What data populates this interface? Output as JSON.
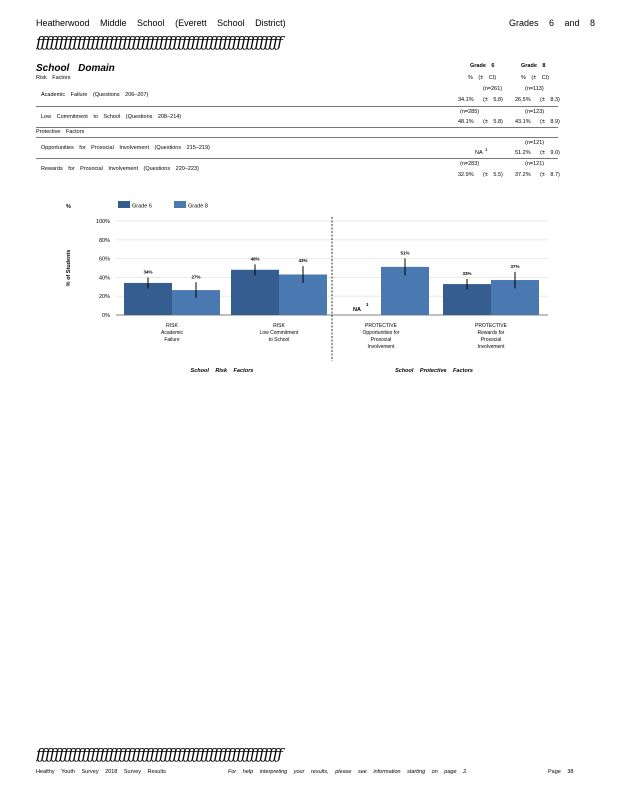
{
  "header": {
    "left": "Heatherwood Middle School (Everett School District)",
    "right": "Grades 6 and 8",
    "rule": "ƒƒƒƒƒƒƒƒƒƒƒƒƒƒƒƒƒƒƒƒƒƒƒƒƒƒƒƒƒƒƒƒƒƒƒƒƒƒƒƒƒƒƒƒƒƒƒƒƒƒƒƒƒƒ"
  },
  "section": {
    "title": "School Domain",
    "col_grade6": "Grade 6",
    "col_grade8": "Grade 8",
    "col_pct6": "% (± CI)",
    "col_pct8": "% (± CI)",
    "risk_heading": "Risk Factors",
    "protective_heading": "Protective Factors"
  },
  "rows": [
    {
      "label": "Academic Failure (Questions 206–207)",
      "n6": "(n=261)",
      "n8": "(n=113)",
      "pct6": "34.1%",
      "ci6": "(± 5.8)",
      "pct8": "26.5%",
      "ci8": "(± 8.3)"
    },
    {
      "label": "Low Commitment to School (Questions 208–214)",
      "n6": "(n=285)",
      "n8": "(n=123)",
      "pct6": "48.1%",
      "ci6": "(± 5.8)",
      "pct8": "43.1%",
      "ci8": "(± 8.9)"
    },
    {
      "label": "Opportunities for Prosocial Involvement (Questions 215–219)",
      "n6": "",
      "n8": "(n=121)",
      "pct6": "NA",
      "na_marker": "1",
      "ci6": "",
      "pct8": "51.2%",
      "ci8": "(± 9.0)"
    },
    {
      "label": "Rewards for Prosocial Involvement (Questions 220–223)",
      "n6": "(n=283)",
      "n8": "(n=121)",
      "pct6": "32.9%",
      "ci6": "(± 5.5)",
      "pct8": "37.2%",
      "ci8": "(± 8.7)"
    }
  ],
  "chart_data": {
    "type": "bar",
    "ylabel": "% of Students",
    "ylabel_top": "%",
    "yticks": [
      "100%",
      "80%",
      "60%",
      "40%",
      "20%",
      "0%"
    ],
    "ylim": [
      0,
      100
    ],
    "categories": [
      [
        "RISK",
        "Academic",
        "Failure"
      ],
      [
        "RISK",
        "Low Commitment",
        "to School"
      ],
      [
        "PROTECTIVE",
        "Opportunities for",
        "Prosocial",
        "Involvement"
      ],
      [
        "PROTECTIVE",
        "Rewards for",
        "Prosocial",
        "Involvement"
      ]
    ],
    "series": [
      {
        "name": "Grade 6",
        "color": "#355d8f",
        "values": [
          34.1,
          48.1,
          null,
          32.9
        ],
        "labels": [
          "34%",
          "48%",
          "NA",
          "33%"
        ],
        "ci": [
          5.8,
          5.8,
          0,
          5.5
        ]
      },
      {
        "name": "Grade 8",
        "color": "#4a78b0",
        "values": [
          26.5,
          43.1,
          51.2,
          37.2
        ],
        "labels": [
          "27%",
          "43%",
          "51%",
          "37%"
        ],
        "ci": [
          8.3,
          8.9,
          9.0,
          8.7
        ]
      }
    ],
    "na_marker": "1",
    "group_labels": [
      "School Risk Factors",
      "School Protective Factors"
    ],
    "grid": true,
    "legend": "top-left"
  },
  "footer": {
    "rule": "ƒƒƒƒƒƒƒƒƒƒƒƒƒƒƒƒƒƒƒƒƒƒƒƒƒƒƒƒƒƒƒƒƒƒƒƒƒƒƒƒƒƒƒƒƒƒƒƒƒƒƒƒƒƒ",
    "left": "Healthy Youth Survey 2018 Survey Results",
    "center": "For help interpreting your results, please see information starting on page 2.",
    "right": "Page 38"
  }
}
